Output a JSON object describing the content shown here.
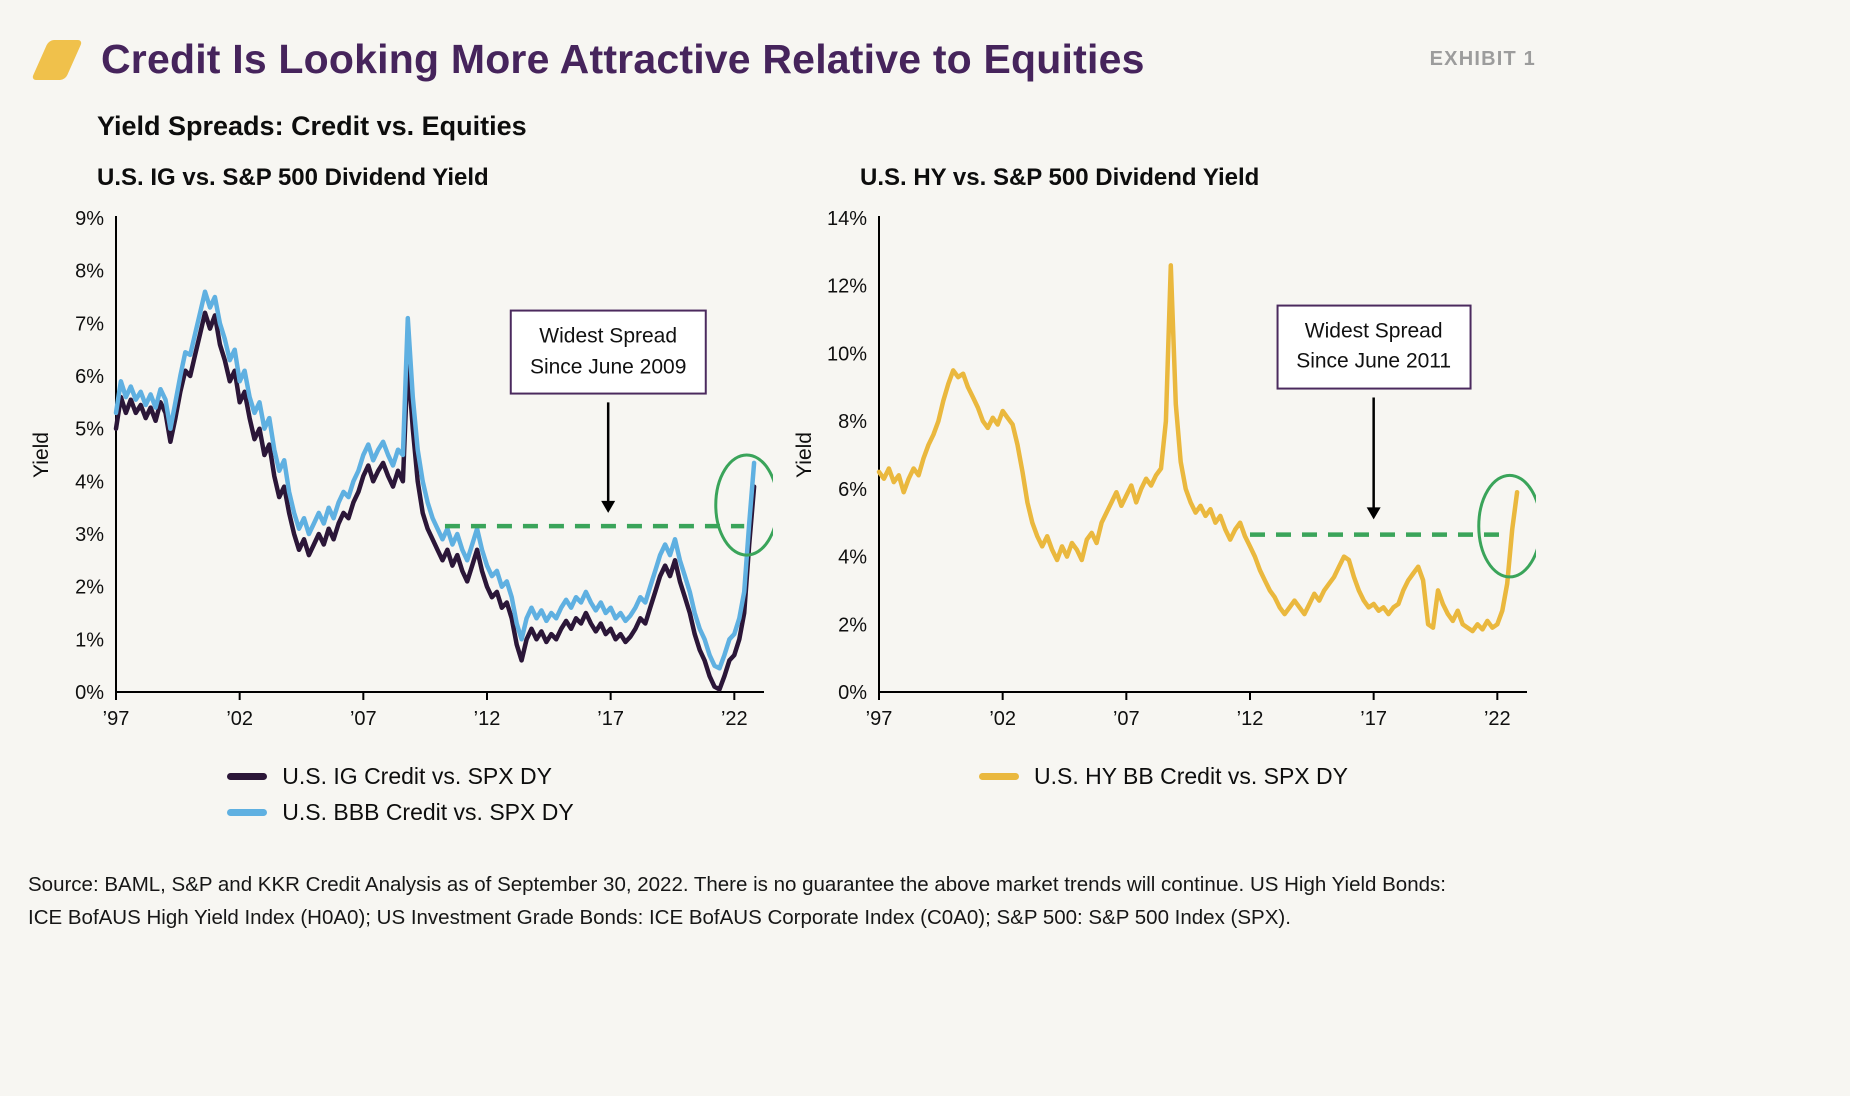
{
  "page": {
    "title": "Credit Is Looking More Attractive Relative to Equities",
    "exhibit_label": "EXHIBIT 1",
    "subtitle": "Yield Spreads: Credit vs. Equities",
    "source_line1": "Source: BAML, S&P and KKR Credit Analysis as of September 30, 2022. There is no guarantee the above market trends will continue. US High Yield Bonds:",
    "source_line2": "ICE BofAUS High Yield Index (H0A0); US Investment Grade Bonds: ICE BofAUS Corporate Index (C0A0); S&P 500: S&P 500 Index (SPX)."
  },
  "colors": {
    "title_purple": "#46245c",
    "logo_gold": "#f0c14b",
    "ig_line": "#2b1638",
    "bbb_line": "#5fb0e1",
    "hy_line": "#eab83e",
    "green": "#3aa45a",
    "annotation_border": "#4b2a5e"
  },
  "chart_data": [
    {
      "type": "line",
      "title": "U.S. IG vs. S&P 500 Dividend Yield",
      "ylabel": "Yield",
      "ylim": [
        0,
        9
      ],
      "xlim": [
        1997,
        2023.2
      ],
      "grid": false,
      "legend_position": "bottom",
      "yticks": [
        {
          "v": 0,
          "label": "0%"
        },
        {
          "v": 1,
          "label": "1%"
        },
        {
          "v": 2,
          "label": "2%"
        },
        {
          "v": 3,
          "label": "3%"
        },
        {
          "v": 4,
          "label": "4%"
        },
        {
          "v": 5,
          "label": "5%"
        },
        {
          "v": 6,
          "label": "6%"
        },
        {
          "v": 7,
          "label": "7%"
        },
        {
          "v": 8,
          "label": "8%"
        },
        {
          "v": 9,
          "label": "9%"
        }
      ],
      "xticks": [
        {
          "v": 1997,
          "label": "’97"
        },
        {
          "v": 2002,
          "label": "’02"
        },
        {
          "v": 2007,
          "label": "’07"
        },
        {
          "v": 2012,
          "label": "’12"
        },
        {
          "v": 2017,
          "label": "’17"
        },
        {
          "v": 2022,
          "label": "’22"
        }
      ],
      "series": [
        {
          "key": "ig",
          "name": "U.S. IG Credit vs. SPX DY",
          "color_key": "ig_line",
          "x0": 1997,
          "dx": 0.2,
          "y": [
            5.0,
            5.6,
            5.3,
            5.55,
            5.3,
            5.45,
            5.2,
            5.4,
            5.15,
            5.5,
            5.3,
            4.75,
            5.2,
            5.7,
            6.1,
            6.0,
            6.4,
            6.8,
            7.2,
            6.9,
            7.15,
            6.6,
            6.3,
            5.9,
            6.1,
            5.5,
            5.7,
            5.2,
            4.8,
            5.0,
            4.5,
            4.7,
            4.1,
            3.7,
            3.9,
            3.4,
            3.0,
            2.7,
            2.9,
            2.6,
            2.8,
            3.0,
            2.8,
            3.1,
            2.9,
            3.2,
            3.4,
            3.3,
            3.6,
            3.8,
            4.1,
            4.3,
            4.0,
            4.2,
            4.35,
            4.1,
            3.9,
            4.2,
            4.0,
            6.3,
            5.0,
            4.0,
            3.4,
            3.1,
            2.9,
            2.7,
            2.5,
            2.7,
            2.4,
            2.6,
            2.3,
            2.1,
            2.4,
            2.7,
            2.3,
            2.0,
            1.8,
            1.9,
            1.6,
            1.7,
            1.4,
            0.9,
            0.6,
            1.0,
            1.2,
            1.0,
            1.15,
            0.95,
            1.1,
            1.0,
            1.2,
            1.35,
            1.2,
            1.4,
            1.3,
            1.5,
            1.3,
            1.15,
            1.3,
            1.1,
            1.2,
            1.0,
            1.1,
            0.95,
            1.05,
            1.2,
            1.4,
            1.3,
            1.6,
            1.9,
            2.2,
            2.4,
            2.2,
            2.5,
            2.1,
            1.8,
            1.5,
            1.1,
            0.8,
            0.6,
            0.3,
            0.1,
            0.05,
            0.3,
            0.6,
            0.7,
            1.0,
            1.5,
            2.8,
            3.9
          ]
        },
        {
          "key": "bbb",
          "name": "U.S. BBB Credit vs. SPX DY",
          "color_key": "bbb_line",
          "x0": 1997,
          "dx": 0.2,
          "y": [
            5.3,
            5.9,
            5.6,
            5.8,
            5.55,
            5.7,
            5.45,
            5.65,
            5.4,
            5.75,
            5.55,
            5.0,
            5.5,
            6.0,
            6.45,
            6.4,
            6.8,
            7.2,
            7.6,
            7.3,
            7.5,
            7.0,
            6.7,
            6.3,
            6.5,
            5.9,
            6.1,
            5.6,
            5.3,
            5.5,
            5.0,
            5.2,
            4.6,
            4.2,
            4.4,
            3.8,
            3.4,
            3.1,
            3.3,
            3.0,
            3.2,
            3.4,
            3.2,
            3.5,
            3.3,
            3.6,
            3.8,
            3.7,
            4.0,
            4.2,
            4.5,
            4.7,
            4.4,
            4.6,
            4.75,
            4.5,
            4.3,
            4.6,
            4.5,
            7.1,
            5.6,
            4.6,
            4.0,
            3.6,
            3.3,
            3.1,
            2.9,
            3.1,
            2.8,
            3.0,
            2.7,
            2.5,
            2.8,
            3.1,
            2.7,
            2.4,
            2.2,
            2.3,
            2.0,
            2.1,
            1.8,
            1.3,
            1.0,
            1.4,
            1.6,
            1.4,
            1.55,
            1.35,
            1.5,
            1.4,
            1.6,
            1.75,
            1.6,
            1.8,
            1.7,
            1.9,
            1.7,
            1.55,
            1.7,
            1.5,
            1.6,
            1.4,
            1.5,
            1.35,
            1.45,
            1.6,
            1.8,
            1.7,
            2.0,
            2.3,
            2.6,
            2.8,
            2.6,
            2.9,
            2.5,
            2.2,
            1.9,
            1.5,
            1.2,
            1.0,
            0.7,
            0.5,
            0.45,
            0.7,
            1.0,
            1.1,
            1.4,
            1.9,
            3.2,
            4.35
          ]
        }
      ],
      "dashed_line": {
        "y": 3.15,
        "x1": 2010.3,
        "x2": 2022.4
      },
      "highlight_ellipse": {
        "cx": 2022.5,
        "cy": 3.55,
        "rx": 1.25,
        "ry": 0.95
      },
      "annotation": {
        "line1": "Widest Spread",
        "line2": "Since June 2009",
        "cx": 2016.9,
        "cy": 6.45,
        "arrow_x": 2016.9,
        "arrow_y1": 5.5,
        "arrow_y2": 3.4
      }
    },
    {
      "type": "line",
      "title": "U.S. HY vs. S&P 500 Dividend Yield",
      "ylabel": "Yield",
      "ylim": [
        0,
        14
      ],
      "xlim": [
        1997,
        2023.2
      ],
      "grid": false,
      "legend_position": "bottom",
      "yticks": [
        {
          "v": 0,
          "label": "0%"
        },
        {
          "v": 2,
          "label": "2%"
        },
        {
          "v": 4,
          "label": "4%"
        },
        {
          "v": 6,
          "label": "6%"
        },
        {
          "v": 8,
          "label": "8%"
        },
        {
          "v": 10,
          "label": "10%"
        },
        {
          "v": 12,
          "label": "12%"
        },
        {
          "v": 14,
          "label": "14%"
        }
      ],
      "xticks": [
        {
          "v": 1997,
          "label": "’97"
        },
        {
          "v": 2002,
          "label": "’02"
        },
        {
          "v": 2007,
          "label": "’07"
        },
        {
          "v": 2012,
          "label": "’12"
        },
        {
          "v": 2017,
          "label": "’17"
        },
        {
          "v": 2022,
          "label": "’22"
        }
      ],
      "series": [
        {
          "key": "hy",
          "name": "U.S. HY BB Credit vs. SPX DY",
          "color_key": "hy_line",
          "x0": 1997,
          "dx": 0.2,
          "y": [
            6.5,
            6.3,
            6.6,
            6.2,
            6.4,
            5.9,
            6.3,
            6.6,
            6.4,
            6.9,
            7.3,
            7.6,
            8.0,
            8.6,
            9.1,
            9.5,
            9.3,
            9.4,
            9.0,
            8.7,
            8.4,
            8.0,
            7.8,
            8.1,
            7.9,
            8.3,
            8.1,
            7.9,
            7.3,
            6.5,
            5.6,
            5.0,
            4.6,
            4.3,
            4.6,
            4.2,
            3.9,
            4.3,
            4.0,
            4.4,
            4.2,
            3.9,
            4.5,
            4.7,
            4.4,
            5.0,
            5.3,
            5.6,
            5.9,
            5.5,
            5.8,
            6.1,
            5.6,
            6.0,
            6.3,
            6.1,
            6.4,
            6.6,
            8.0,
            12.6,
            8.5,
            6.8,
            6.0,
            5.6,
            5.3,
            5.5,
            5.2,
            5.4,
            5.0,
            5.2,
            4.8,
            4.5,
            4.8,
            5.0,
            4.6,
            4.3,
            4.0,
            3.6,
            3.3,
            3.0,
            2.8,
            2.5,
            2.3,
            2.5,
            2.7,
            2.5,
            2.3,
            2.6,
            2.9,
            2.7,
            3.0,
            3.2,
            3.4,
            3.7,
            4.0,
            3.9,
            3.4,
            3.0,
            2.7,
            2.5,
            2.6,
            2.4,
            2.5,
            2.3,
            2.5,
            2.6,
            3.0,
            3.3,
            3.5,
            3.7,
            3.3,
            2.0,
            1.9,
            3.0,
            2.6,
            2.3,
            2.1,
            2.4,
            2.0,
            1.9,
            1.8,
            2.0,
            1.85,
            2.1,
            1.9,
            2.0,
            2.4,
            3.2,
            4.8,
            5.9
          ]
        }
      ],
      "dashed_line": {
        "y": 4.65,
        "x1": 2012.0,
        "x2": 2022.3
      },
      "highlight_ellipse": {
        "cx": 2022.5,
        "cy": 4.9,
        "rx": 1.25,
        "ry": 1.5
      },
      "annotation": {
        "line1": "Widest Spread",
        "line2": "Since June 2011",
        "cx": 2017.0,
        "cy": 10.2,
        "arrow_x": 2017.0,
        "arrow_y1": 8.7,
        "arrow_y2": 5.1
      }
    }
  ]
}
